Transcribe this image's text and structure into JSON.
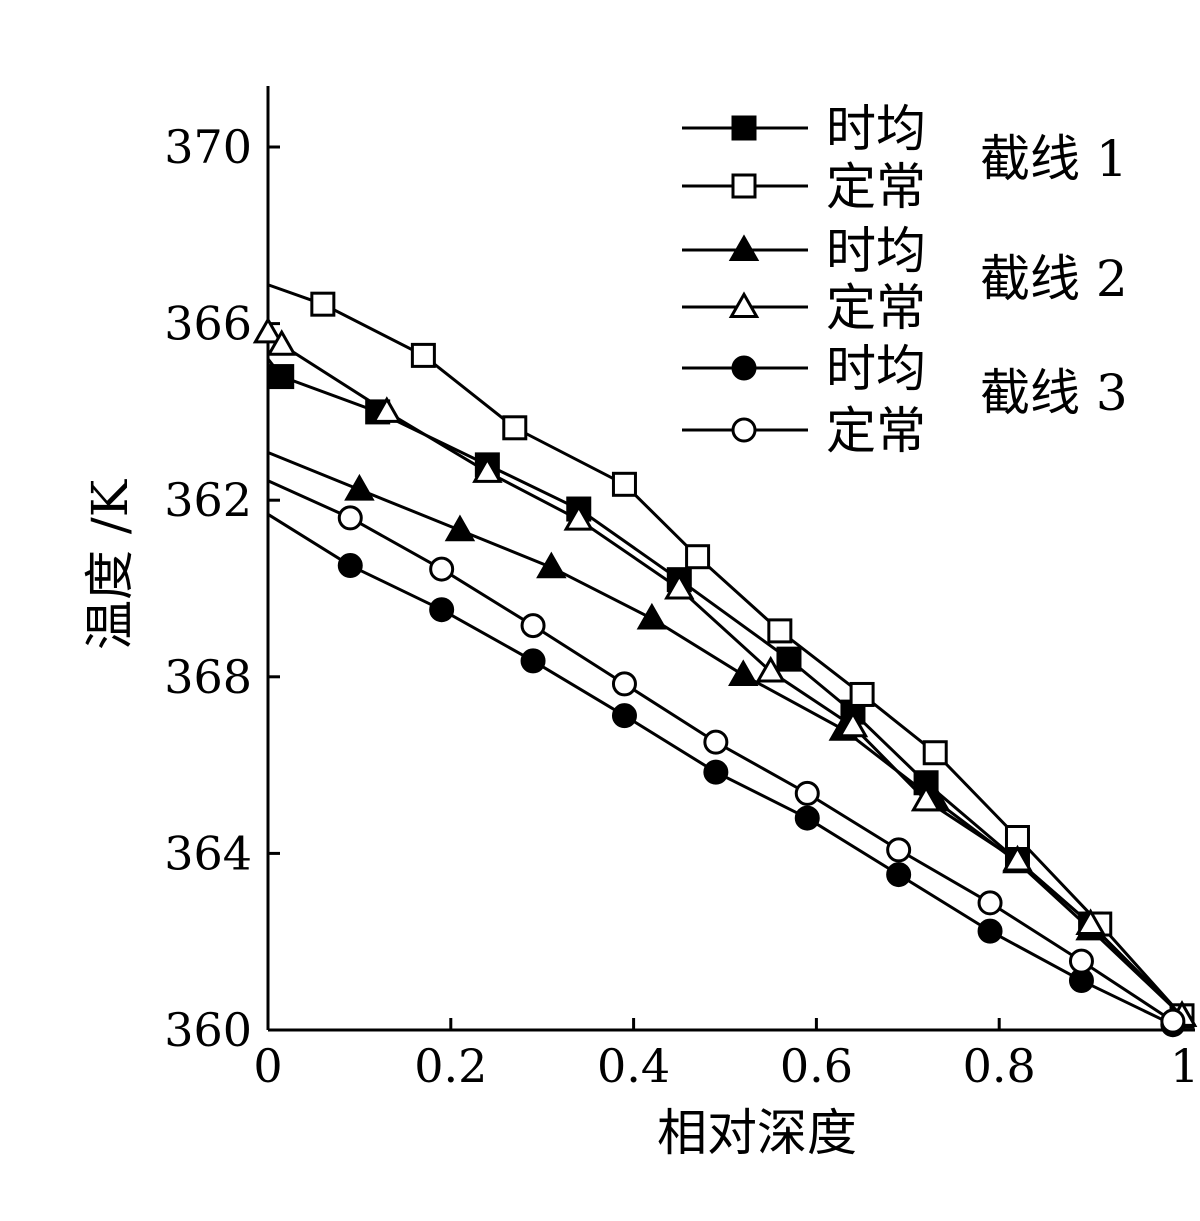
{
  "chart_data": {
    "type": "line",
    "title": "",
    "xlabel": "相对深度",
    "ylabel": "温度 /K",
    "xlim": [
      0,
      1.0
    ],
    "grid": false,
    "legend_placement": "top-right",
    "x_ticks": [
      {
        "value": 0,
        "label": "0"
      },
      {
        "value": 0.2,
        "label": "0.2"
      },
      {
        "value": 0.4,
        "label": "0.4"
      },
      {
        "value": 0.6,
        "label": "0.6"
      },
      {
        "value": 0.8,
        "label": "0.8"
      },
      {
        "value": 1.0,
        "label": "1."
      }
    ],
    "y_ticks": [
      {
        "label": "360"
      },
      {
        "label": "364"
      },
      {
        "label": "368"
      },
      {
        "label": "362"
      },
      {
        "label": "366"
      },
      {
        "label": "370"
      }
    ],
    "y_axis_note": "Printed tick labels are non-monotonic (360, 364, 368, 362, 366, 370); y values below are on a normalized 0-5 scale where each unit is one tick interval.",
    "legend_groups": [
      "截线 1",
      "截线 2",
      "截线 3"
    ],
    "series": [
      {
        "name": "时均",
        "group": "截线 1",
        "marker": "square",
        "filled": true,
        "x": [
          0,
          0.015,
          0.12,
          0.24,
          0.34,
          0.45,
          0.57,
          0.64,
          0.72,
          0.82,
          0.9,
          1.0
        ],
        "y": [
          3.8,
          3.7,
          3.5,
          3.2,
          2.95,
          2.55,
          2.1,
          1.8,
          1.4,
          0.96,
          0.6,
          0.08
        ]
      },
      {
        "name": "定常",
        "group": "截线 1",
        "marker": "square",
        "filled": false,
        "x": [
          0,
          0.06,
          0.17,
          0.27,
          0.39,
          0.47,
          0.56,
          0.65,
          0.73,
          0.82,
          0.91,
          1.0
        ],
        "y": [
          4.22,
          4.11,
          3.82,
          3.41,
          3.09,
          2.68,
          2.26,
          1.9,
          1.57,
          1.09,
          0.6,
          0.08
        ]
      },
      {
        "name": "时均",
        "group": "截线 2",
        "marker": "triangle",
        "filled": true,
        "x": [
          0,
          0.1,
          0.21,
          0.31,
          0.42,
          0.52,
          0.63,
          0.73,
          0.82,
          0.9,
          1.0
        ],
        "y": [
          3.27,
          3.06,
          2.83,
          2.62,
          2.33,
          2.01,
          1.7,
          1.3,
          0.95,
          0.57,
          0.08
        ]
      },
      {
        "name": "定常",
        "group": "截线 2",
        "marker": "triangle",
        "filled": false,
        "x": [
          0,
          0.015,
          0.13,
          0.24,
          0.34,
          0.45,
          0.55,
          0.64,
          0.72,
          0.82,
          0.9,
          1.0
        ],
        "y": [
          3.95,
          3.88,
          3.5,
          3.16,
          2.89,
          2.5,
          2.03,
          1.72,
          1.3,
          0.96,
          0.6,
          0.08
        ]
      },
      {
        "name": "时均",
        "group": "截线 3",
        "marker": "circle",
        "filled": true,
        "x": [
          0,
          0.09,
          0.19,
          0.29,
          0.39,
          0.49,
          0.59,
          0.69,
          0.79,
          0.89,
          0.99
        ],
        "y": [
          2.92,
          2.63,
          2.38,
          2.09,
          1.78,
          1.46,
          1.2,
          0.88,
          0.56,
          0.28,
          0.03
        ]
      },
      {
        "name": "定常",
        "group": "截线 3",
        "marker": "circle",
        "filled": false,
        "x": [
          0,
          0.09,
          0.19,
          0.29,
          0.39,
          0.49,
          0.59,
          0.69,
          0.79,
          0.89,
          0.99
        ],
        "y": [
          3.11,
          2.9,
          2.61,
          2.29,
          1.96,
          1.63,
          1.34,
          1.02,
          0.72,
          0.39,
          0.05
        ]
      }
    ]
  }
}
